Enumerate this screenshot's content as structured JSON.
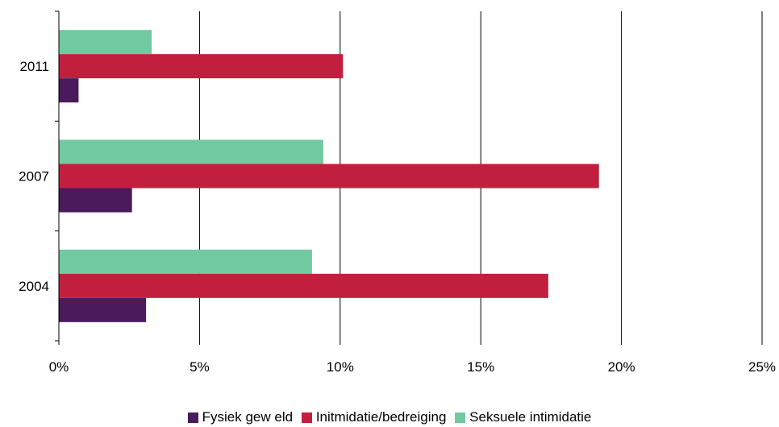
{
  "chart_data": {
    "type": "bar",
    "orientation": "horizontal",
    "categories": [
      "2011",
      "2007",
      "2004"
    ],
    "series": [
      {
        "name": "Fysiek gew eld",
        "color": "#4a1a5c",
        "values": [
          0.7,
          2.6,
          3.1
        ]
      },
      {
        "name": "Initmidatie/bedreiging",
        "color": "#c21f3f",
        "values": [
          10.1,
          19.2,
          17.4
        ]
      },
      {
        "name": "Seksuele intimidatie",
        "color": "#71c9a0",
        "values": [
          3.3,
          9.4,
          9.0
        ]
      }
    ],
    "xlim": [
      0,
      25
    ],
    "x_ticks": [
      "0%",
      "5%",
      "10%",
      "15%",
      "20%",
      "25%"
    ],
    "grid": "vertical",
    "legend_position": "bottom"
  }
}
